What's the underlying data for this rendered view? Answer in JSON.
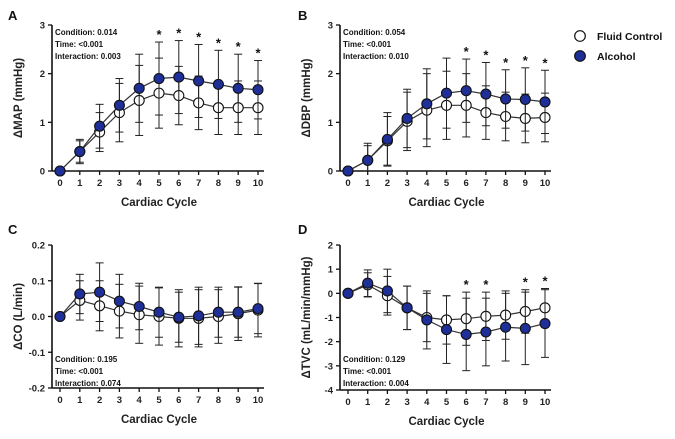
{
  "legend": {
    "items": [
      {
        "label": "Fluid Control",
        "fill": "#ffffff"
      },
      {
        "label": "Alcohol",
        "fill": "#1f2f9a"
      }
    ]
  },
  "chart_data": [
    {
      "type": "line",
      "panel": "A",
      "xlabel": "Cardiac Cycle",
      "ylabel": "ΔMAP (mmHg)",
      "x": [
        0,
        1,
        2,
        3,
        4,
        5,
        6,
        7,
        8,
        9,
        10
      ],
      "xticks": [
        "0",
        "1",
        "2",
        "3",
        "4",
        "5",
        "6",
        "7",
        "8",
        "9",
        "10"
      ],
      "yticks": [
        "0",
        "1",
        "2",
        "3"
      ],
      "ylim": [
        0,
        3
      ],
      "stats": [
        "Condition: 0.014",
        "Time: <0.001",
        "Interaction: 0.003"
      ],
      "significant": [
        5,
        6,
        7,
        8,
        9,
        10
      ],
      "series": [
        {
          "name": "Fluid Control",
          "values": [
            0,
            0.4,
            0.8,
            1.2,
            1.45,
            1.6,
            1.55,
            1.4,
            1.3,
            1.3,
            1.3
          ],
          "error": [
            0,
            0.22,
            0.4,
            0.6,
            0.72,
            0.72,
            0.6,
            0.55,
            0.55,
            0.55,
            0.55
          ]
        },
        {
          "name": "Alcohol",
          "values": [
            0,
            0.4,
            0.92,
            1.35,
            1.7,
            1.9,
            1.93,
            1.85,
            1.78,
            1.7,
            1.67
          ],
          "error": [
            0,
            0.25,
            0.45,
            0.55,
            0.7,
            0.75,
            0.75,
            0.75,
            0.7,
            0.7,
            0.6
          ]
        }
      ]
    },
    {
      "type": "line",
      "panel": "B",
      "xlabel": "Cardiac Cycle",
      "ylabel": "ΔDBP (mmHg)",
      "x": [
        0,
        1,
        2,
        3,
        4,
        5,
        6,
        7,
        8,
        9,
        10
      ],
      "xticks": [
        "0",
        "1",
        "2",
        "3",
        "4",
        "5",
        "6",
        "7",
        "8",
        "9",
        "10"
      ],
      "yticks": [
        "0",
        "1",
        "2",
        "3"
      ],
      "ylim": [
        0,
        3
      ],
      "stats": [
        "Condition: 0.054",
        "Time: <0.001",
        "Interaction: 0.010"
      ],
      "significant": [
        6,
        7,
        8,
        9,
        10
      ],
      "series": [
        {
          "name": "Fluid Control",
          "values": [
            0,
            0.22,
            0.62,
            1.02,
            1.25,
            1.35,
            1.35,
            1.2,
            1.12,
            1.08,
            1.1
          ],
          "error": [
            0,
            0.3,
            0.5,
            0.6,
            0.75,
            0.7,
            0.65,
            0.55,
            0.5,
            0.5,
            0.5
          ]
        },
        {
          "name": "Alcohol",
          "values": [
            0,
            0.22,
            0.65,
            1.08,
            1.38,
            1.6,
            1.65,
            1.58,
            1.48,
            1.47,
            1.42
          ],
          "error": [
            0,
            0.35,
            0.55,
            0.6,
            0.72,
            0.72,
            0.65,
            0.65,
            0.6,
            0.65,
            0.65
          ]
        }
      ]
    },
    {
      "type": "line",
      "panel": "C",
      "xlabel": "Cardiac Cycle",
      "ylabel": "ΔCO (L/min)",
      "x": [
        0,
        1,
        2,
        3,
        4,
        5,
        6,
        7,
        8,
        9,
        10
      ],
      "xticks": [
        "0",
        "1",
        "2",
        "3",
        "4",
        "5",
        "6",
        "7",
        "8",
        "9",
        "10"
      ],
      "yticks": [
        "-0.2",
        "-0.1",
        "0.0",
        "0.1",
        "0.2"
      ],
      "ylim": [
        -0.2,
        0.2
      ],
      "stats": [
        "Condition: 0.195",
        "Time: <0.001",
        "Interaction: 0.074"
      ],
      "significant": [],
      "series": [
        {
          "name": "Fluid Control",
          "values": [
            0,
            0.045,
            0.03,
            0.015,
            0.005,
            0,
            -0.005,
            -0.005,
            0,
            0.008,
            0.018
          ],
          "error": [
            0,
            0.055,
            0.07,
            0.075,
            0.08,
            0.08,
            0.08,
            0.08,
            0.075,
            0.075,
            0.075
          ]
        },
        {
          "name": "Alcohol",
          "values": [
            0,
            0.063,
            0.068,
            0.043,
            0.028,
            0.012,
            -0.002,
            0.002,
            0.012,
            0.012,
            0.022
          ],
          "error": [
            0,
            0.055,
            0.082,
            0.075,
            0.065,
            0.07,
            0.07,
            0.08,
            0.07,
            0.07,
            0.07
          ]
        }
      ]
    },
    {
      "type": "line",
      "panel": "D",
      "xlabel": "Cardiac Cycle",
      "ylabel": "ΔTVC (mL/min/mmHg)",
      "x": [
        0,
        1,
        2,
        3,
        4,
        5,
        6,
        7,
        8,
        9,
        10
      ],
      "xticks": [
        "0",
        "1",
        "2",
        "3",
        "4",
        "5",
        "6",
        "7",
        "8",
        "9",
        "10"
      ],
      "yticks": [
        "-4",
        "-3",
        "-2",
        "-1",
        "0",
        "1",
        "2"
      ],
      "ylim": [
        -4,
        2
      ],
      "stats": [
        "Condition: 0.129",
        "Time: <0.001",
        "Interaction: 0.004"
      ],
      "significant": [
        6,
        7,
        9,
        10
      ],
      "series": [
        {
          "name": "Fluid Control",
          "values": [
            0,
            0.35,
            -0.1,
            -0.6,
            -1.0,
            -1.1,
            -1.05,
            -0.95,
            -0.9,
            -0.75,
            -0.6
          ],
          "error": [
            0,
            0.5,
            0.8,
            0.9,
            1.0,
            1.0,
            1.1,
            1.0,
            1.0,
            0.9,
            0.8
          ]
        },
        {
          "name": "Alcohol",
          "values": [
            0,
            0.42,
            0.1,
            -0.6,
            -1.1,
            -1.5,
            -1.7,
            -1.6,
            -1.4,
            -1.45,
            -1.25
          ],
          "error": [
            0,
            0.55,
            0.9,
            0.9,
            1.2,
            1.4,
            1.5,
            1.4,
            1.4,
            1.5,
            1.4
          ]
        }
      ]
    }
  ]
}
